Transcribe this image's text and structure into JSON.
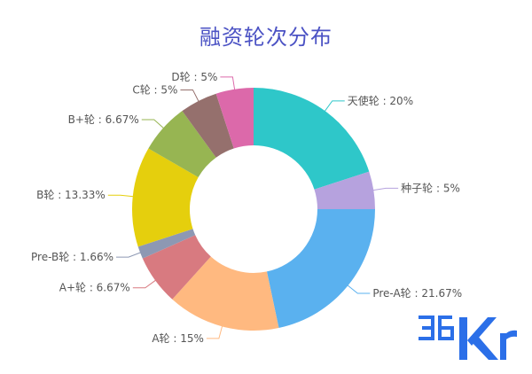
{
  "chart_data": {
    "type": "pie",
    "variant": "donut",
    "title": "融资轮次分布",
    "slices": [
      {
        "label": "天使轮",
        "value": 20,
        "display": "天使轮 : 20%",
        "color": "#2ec7c9"
      },
      {
        "label": "种子轮",
        "value": 5,
        "display": "种子轮 : 5%",
        "color": "#b6a2de"
      },
      {
        "label": "Pre-A轮",
        "value": 21.67,
        "display": "Pre-A轮 : 21.67%",
        "color": "#5ab1ef"
      },
      {
        "label": "A轮",
        "value": 15,
        "display": "A轮 : 15%",
        "color": "#ffb980"
      },
      {
        "label": "A+轮",
        "value": 6.67,
        "display": "A+轮 : 6.67%",
        "color": "#d87a80"
      },
      {
        "label": "Pre-B轮",
        "value": 1.66,
        "display": "Pre-B轮 : 1.66%",
        "color": "#8d98b3"
      },
      {
        "label": "B轮",
        "value": 13.33,
        "display": "B轮 : 13.33%",
        "color": "#e5cf0d"
      },
      {
        "label": "B+轮",
        "value": 6.67,
        "display": "B+轮 : 6.67%",
        "color": "#97b552"
      },
      {
        "label": "C轮",
        "value": 5,
        "display": "C轮 : 5%",
        "color": "#95706d"
      },
      {
        "label": "D轮",
        "value": 5,
        "display": "D轮 : 5%",
        "color": "#dc69aa"
      }
    ],
    "legend": "none",
    "labels_position": "outside"
  },
  "watermark": {
    "text": "36Kr",
    "color": "#2b6fe8"
  }
}
